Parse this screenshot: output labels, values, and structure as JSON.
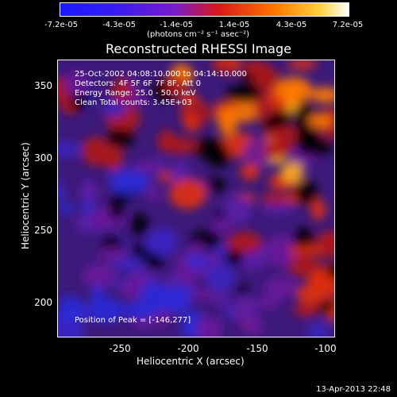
{
  "colorbar": {
    "ticks": [
      "-7.2e-05",
      "-4.3e-05",
      "-1.4e-05",
      "1.4e-05",
      "4.3e-05",
      "7.2e-05"
    ],
    "unit": "(photons cm⁻² s⁻¹ asec⁻²)"
  },
  "chart_data": {
    "type": "heatmap",
    "title": "Reconstructed RHESSI Image",
    "xlabel": "Heliocentric X (arcsec)",
    "ylabel": "Heliocentric Y (arcsec)",
    "xlim": [
      -290,
      -95
    ],
    "ylim": [
      178,
      372
    ],
    "x_ticks": [
      "-250",
      "-200",
      "-150",
      "-100"
    ],
    "y_ticks": [
      "350",
      "300",
      "250",
      "200"
    ],
    "color_range": [
      -7.2e-05,
      7.2e-05
    ],
    "annotations": {
      "line1": "25-Oct-2002 04:08:10.000 to 04:14:10.000",
      "line2": "Detectors: 4F 5F 6F 7F 8F, Att 0",
      "line3": "Energy Range: 25.0 - 50.0 keV",
      "line4": "Clean     Total counts: 3.45E+03",
      "peak": "Position of Peak = [-146,277]"
    },
    "peak": {
      "x": -146,
      "y": 277
    }
  },
  "footer": {
    "timestamp": "13-Apr-2013 22:48"
  }
}
